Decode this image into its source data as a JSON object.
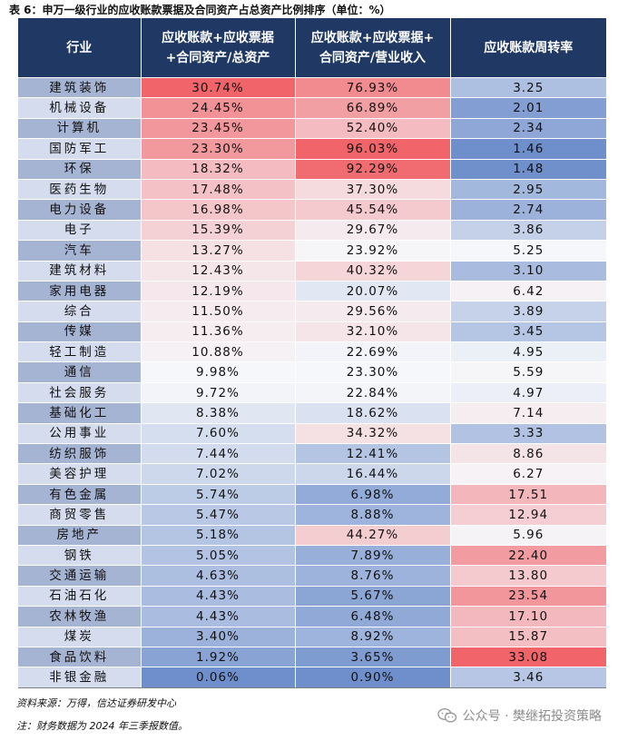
{
  "title": "表 6：申万一级行业的应收账款票据及合同资产占总资产比例排序（单位：%）",
  "headers": {
    "industry": "行业",
    "ratio_assets_l1": "应收账款+应收票据",
    "ratio_assets_l2": "+合同资产/总资产",
    "ratio_revenue_l1": "应收账款+应收票据+",
    "ratio_revenue_l2": "合同资产/营业收入",
    "turnover": "应收账款周转率"
  },
  "rows": [
    {
      "industry": "建筑装饰",
      "ratio_assets": "30.74%",
      "ratio_revenue": "76.93%",
      "turnover": "3.25"
    },
    {
      "industry": "机械设备",
      "ratio_assets": "24.45%",
      "ratio_revenue": "66.89%",
      "turnover": "2.01"
    },
    {
      "industry": "计算机",
      "ratio_assets": "23.45%",
      "ratio_revenue": "52.40%",
      "turnover": "2.34"
    },
    {
      "industry": "国防军工",
      "ratio_assets": "23.30%",
      "ratio_revenue": "96.03%",
      "turnover": "1.46"
    },
    {
      "industry": "环保",
      "ratio_assets": "18.32%",
      "ratio_revenue": "92.29%",
      "turnover": "1.48"
    },
    {
      "industry": "医药生物",
      "ratio_assets": "17.48%",
      "ratio_revenue": "37.30%",
      "turnover": "2.95"
    },
    {
      "industry": "电力设备",
      "ratio_assets": "16.98%",
      "ratio_revenue": "45.54%",
      "turnover": "2.74"
    },
    {
      "industry": "电子",
      "ratio_assets": "15.39%",
      "ratio_revenue": "29.67%",
      "turnover": "3.86"
    },
    {
      "industry": "汽车",
      "ratio_assets": "13.27%",
      "ratio_revenue": "23.92%",
      "turnover": "5.25"
    },
    {
      "industry": "建筑材料",
      "ratio_assets": "12.43%",
      "ratio_revenue": "40.32%",
      "turnover": "3.10"
    },
    {
      "industry": "家用电器",
      "ratio_assets": "12.19%",
      "ratio_revenue": "20.07%",
      "turnover": "6.42"
    },
    {
      "industry": "综合",
      "ratio_assets": "11.50%",
      "ratio_revenue": "29.56%",
      "turnover": "3.89"
    },
    {
      "industry": "传媒",
      "ratio_assets": "11.36%",
      "ratio_revenue": "32.10%",
      "turnover": "3.45"
    },
    {
      "industry": "轻工制造",
      "ratio_assets": "10.88%",
      "ratio_revenue": "22.69%",
      "turnover": "4.95"
    },
    {
      "industry": "通信",
      "ratio_assets": "9.98%",
      "ratio_revenue": "23.30%",
      "turnover": "5.59"
    },
    {
      "industry": "社会服务",
      "ratio_assets": "9.72%",
      "ratio_revenue": "22.84%",
      "turnover": "4.97"
    },
    {
      "industry": "基础化工",
      "ratio_assets": "8.38%",
      "ratio_revenue": "18.62%",
      "turnover": "7.14"
    },
    {
      "industry": "公用事业",
      "ratio_assets": "7.60%",
      "ratio_revenue": "34.32%",
      "turnover": "3.33"
    },
    {
      "industry": "纺织服饰",
      "ratio_assets": "7.44%",
      "ratio_revenue": "12.41%",
      "turnover": "8.86"
    },
    {
      "industry": "美容护理",
      "ratio_assets": "7.02%",
      "ratio_revenue": "16.44%",
      "turnover": "6.27"
    },
    {
      "industry": "有色金属",
      "ratio_assets": "5.74%",
      "ratio_revenue": "6.98%",
      "turnover": "17.51"
    },
    {
      "industry": "商贸零售",
      "ratio_assets": "5.47%",
      "ratio_revenue": "8.88%",
      "turnover": "12.94"
    },
    {
      "industry": "房地产",
      "ratio_assets": "5.18%",
      "ratio_revenue": "44.27%",
      "turnover": "5.96"
    },
    {
      "industry": "钢铁",
      "ratio_assets": "5.05%",
      "ratio_revenue": "7.89%",
      "turnover": "22.40"
    },
    {
      "industry": "交通运输",
      "ratio_assets": "4.63%",
      "ratio_revenue": "8.76%",
      "turnover": "13.80"
    },
    {
      "industry": "石油石化",
      "ratio_assets": "4.43%",
      "ratio_revenue": "5.67%",
      "turnover": "23.54"
    },
    {
      "industry": "农林牧渔",
      "ratio_assets": "4.43%",
      "ratio_revenue": "6.48%",
      "turnover": "17.10"
    },
    {
      "industry": "煤炭",
      "ratio_assets": "3.40%",
      "ratio_revenue": "8.92%",
      "turnover": "15.87"
    },
    {
      "industry": "食品饮料",
      "ratio_assets": "1.92%",
      "ratio_revenue": "3.65%",
      "turnover": "33.08"
    },
    {
      "industry": "非银金融",
      "ratio_assets": "0.06%",
      "ratio_revenue": "0.90%",
      "turnover": "3.46"
    }
  ],
  "source_note": "资料来源：万得，信达证券研发中心",
  "footnote": "注：财务数据为 2024 年三季报数值。",
  "watermark": "公众号 · 樊继拓投资策略",
  "colors": {
    "header_bg": "#1f3864",
    "industry_dark": "#a6b4d4",
    "industry_light": "#d4dcee",
    "heat_high": "#f0646a",
    "heat_mid": "#f6f7fa",
    "heat_low": "#6e8fcb"
  }
}
